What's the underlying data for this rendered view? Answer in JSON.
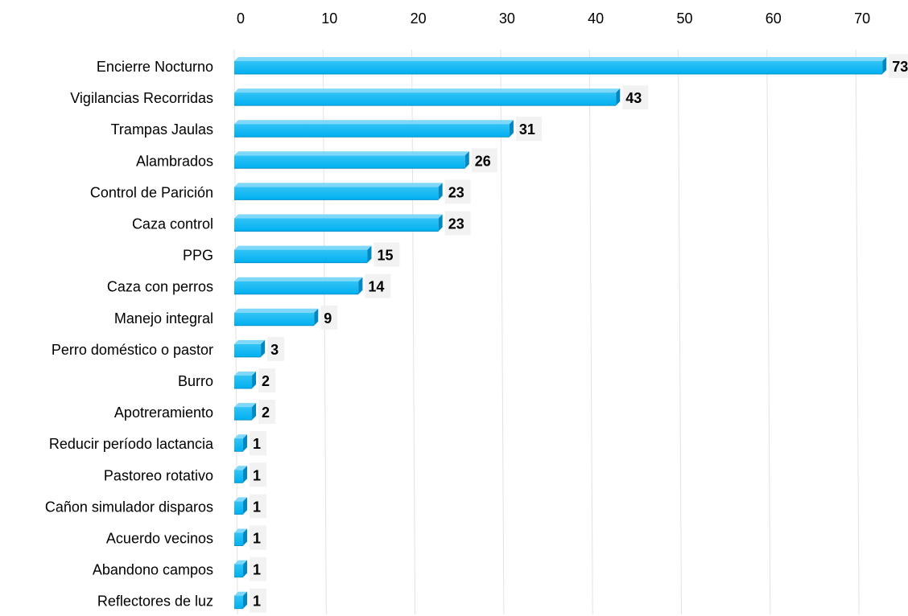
{
  "chart_data": {
    "type": "bar",
    "orientation": "horizontal",
    "title": "",
    "xlabel": "",
    "ylabel": "",
    "xlim": [
      0,
      73
    ],
    "x_ticks": [
      0,
      10,
      20,
      30,
      40,
      50,
      60,
      70
    ],
    "x_axis_position": "top",
    "grid": "vertical",
    "legend": "none",
    "categories": [
      "Encierre Nocturno",
      "Vigilancias Recorridas",
      "Trampas Jaulas",
      "Alambrados",
      "Control de Parición",
      "Caza control",
      "PPG",
      "Caza con perros",
      "Manejo integral",
      "Perro doméstico o pastor",
      "Burro",
      "Apotreramiento",
      "Reducir período lactancia",
      "Pastoreo rotativo",
      "Cañon simulador disparos",
      "Acuerdo vecinos",
      "Abandono campos",
      "Reflectores de luz"
    ],
    "values": [
      73,
      43,
      31,
      26,
      23,
      23,
      15,
      14,
      9,
      3,
      2,
      2,
      1,
      1,
      1,
      1,
      1,
      1
    ],
    "bar_color": "#00B0F0",
    "data_labels": true
  }
}
